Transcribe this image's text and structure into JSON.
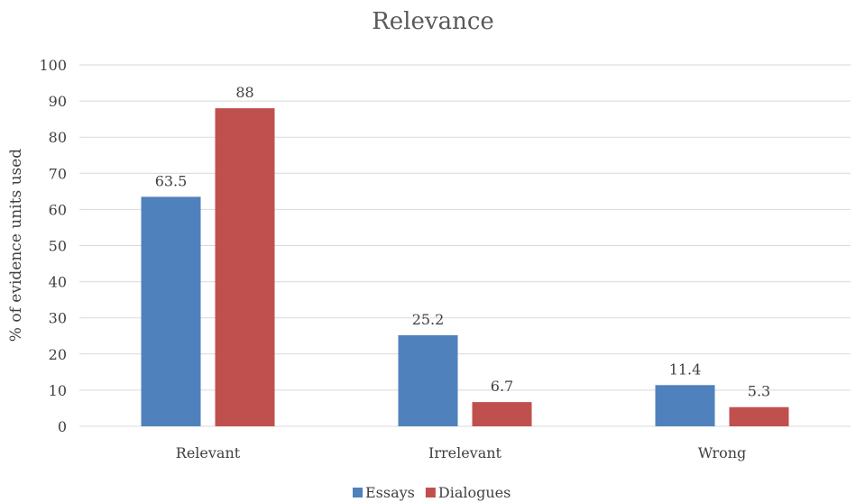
{
  "chart_data": {
    "type": "bar",
    "title": "Relevance",
    "xlabel": "",
    "ylabel": "% of evidence units used",
    "categories": [
      "Relevant",
      "Irrelevant",
      "Wrong"
    ],
    "series": [
      {
        "name": "Essays",
        "values": [
          63.5,
          25.2,
          11.4
        ],
        "color": "#4f81bd"
      },
      {
        "name": "Dialogues",
        "values": [
          88,
          6.7,
          5.3
        ],
        "color": "#c0504d"
      }
    ],
    "ylim": [
      0,
      100
    ],
    "yticks": [
      0,
      10,
      20,
      30,
      40,
      50,
      60,
      70,
      80,
      90,
      100
    ],
    "grid": true,
    "legend": "bottom",
    "data_labels": true
  }
}
